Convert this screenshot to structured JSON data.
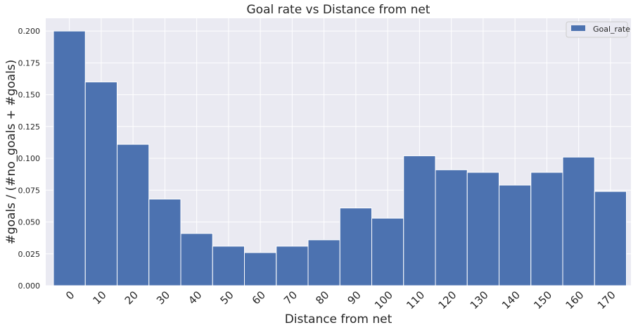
{
  "chart_data": {
    "type": "bar",
    "title": "Goal rate vs Distance from net",
    "xlabel": "Distance from net",
    "ylabel": "#goals / (#no_goals + #goals)",
    "categories": [
      "0",
      "10",
      "20",
      "30",
      "40",
      "50",
      "60",
      "70",
      "80",
      "90",
      "100",
      "110",
      "120",
      "130",
      "140",
      "150",
      "160",
      "170"
    ],
    "series": [
      {
        "name": "Goal_rate",
        "values": [
          0.2,
          0.16,
          0.111,
          0.068,
          0.041,
          0.031,
          0.026,
          0.031,
          0.036,
          0.061,
          0.053,
          0.102,
          0.091,
          0.089,
          0.079,
          0.089,
          0.101,
          0.074
        ],
        "color": "#4c72b0"
      }
    ],
    "ylim": [
      0,
      0.21
    ],
    "yticks": [
      "0.000",
      "0.025",
      "0.050",
      "0.075",
      "0.100",
      "0.125",
      "0.150",
      "0.175",
      "0.200"
    ],
    "grid": true,
    "legend_position": "top-right",
    "colors": {
      "plot_background": "#eaeaf2",
      "grid": "#ffffff",
      "bar": "#4c72b0"
    }
  }
}
